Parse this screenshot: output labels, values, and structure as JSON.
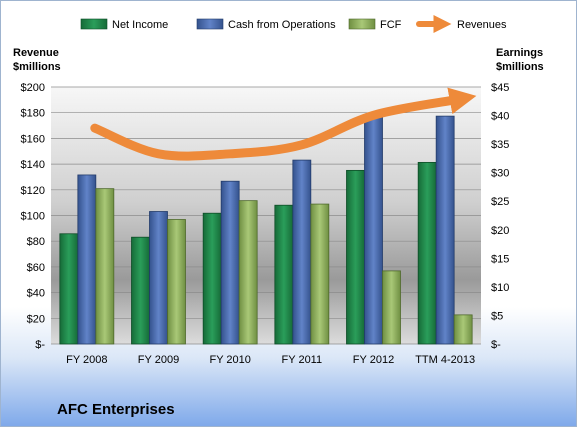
{
  "company": "AFC Enterprises",
  "legend": {
    "net_income": "Net Income",
    "cfo": "Cash from Operations",
    "fcf": "FCF",
    "revenues": "Revenues"
  },
  "axes": {
    "left_title_1": "Revenue",
    "left_title_2": "$millions",
    "right_title_1": "Earnings",
    "right_title_2": "$millions",
    "left_ticks": [
      "$-",
      "$20",
      "$40",
      "$60",
      "$80",
      "$100",
      "$120",
      "$140",
      "$160",
      "$180",
      "$200"
    ],
    "right_ticks": [
      "$-",
      "$5",
      "$10",
      "$15",
      "$20",
      "$25",
      "$30",
      "$35",
      "$40",
      "$45"
    ]
  },
  "colors": {
    "net_income": "#1f8a4c",
    "cfo": "#4a6db0",
    "fcf": "#8db05a",
    "revenues": "#ee8a3a"
  },
  "chart_data": {
    "type": "bar",
    "categories": [
      "FY 2008",
      "FY 2009",
      "FY 2010",
      "FY 2011",
      "FY 2012",
      "TTM 4-2013"
    ],
    "series": [
      {
        "name": "Net Income",
        "axis": "right",
        "values": [
          19.3,
          18.7,
          22.9,
          24.3,
          30.4,
          31.8
        ]
      },
      {
        "name": "Cash from Operations",
        "axis": "right",
        "values": [
          29.6,
          23.2,
          28.5,
          32.2,
          40.1,
          39.9
        ]
      },
      {
        "name": "FCF",
        "axis": "right",
        "values": [
          27.2,
          21.8,
          25.1,
          24.5,
          12.8,
          5.1
        ]
      },
      {
        "name": "Revenues",
        "axis": "left",
        "type": "line",
        "values": [
          168,
          148,
          148,
          155,
          178,
          190
        ]
      }
    ],
    "ylim_left": [
      0,
      200
    ],
    "ylim_right": [
      0,
      45
    ],
    "grid": true,
    "legend_position": "top"
  }
}
